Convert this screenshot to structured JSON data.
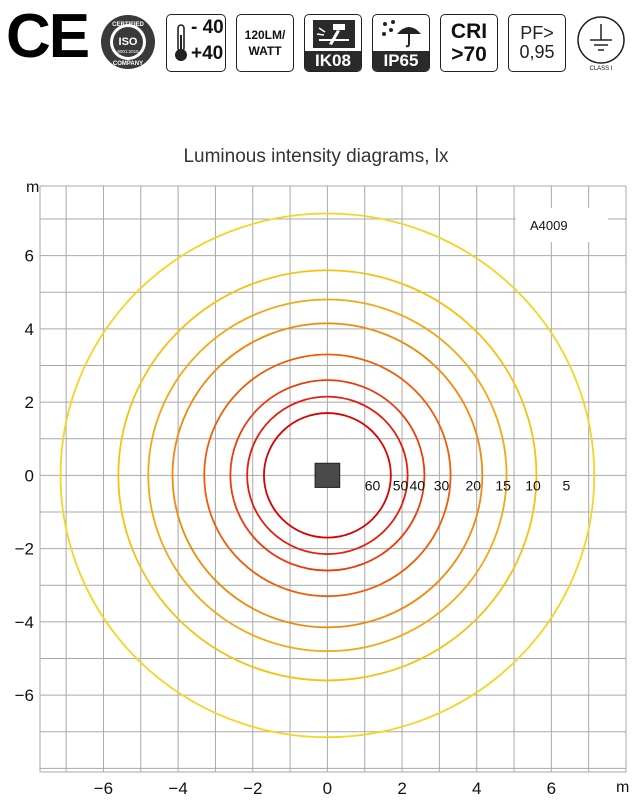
{
  "header_badges": {
    "ce_mark": "CE",
    "iso": {
      "top_text": "CERTIFIED",
      "center": "ISO",
      "standard": "9001:2015",
      "bottom_text": "COMPANY"
    },
    "temperature": {
      "min": "- 40",
      "max": "+40"
    },
    "efficacy": {
      "line1": "120LM/",
      "line2": "WATT"
    },
    "impact": {
      "label": "IK08",
      "icon": "hammer-impact-icon"
    },
    "ingress": {
      "label": "IP65",
      "icon": "rain-umbrella-icon"
    },
    "cri": {
      "line1": "CRI",
      "line2": ">70"
    },
    "power_factor": {
      "line1": "PF>",
      "line2": "0,95"
    },
    "protection_class": {
      "label": "CLASS I",
      "icon": "earth-ground-icon"
    }
  },
  "colors": {
    "grid": "#a9a9a9",
    "lamp": "#4a4a4a",
    "ring_palette": [
      "#d90000",
      "#e41e0c",
      "#ea3d0c",
      "#ee5c08",
      "#f08a0c",
      "#f3a815",
      "#f5c214",
      "#f2d624"
    ]
  },
  "chart_data": {
    "type": "isolux-contour",
    "title": "Luminous intensity diagrams, lx",
    "xlabel": "m",
    "ylabel": "m",
    "model_label": "A4009",
    "xlim": [
      -7.7,
      8
    ],
    "ylim": [
      -8.1,
      7.9
    ],
    "grid": true,
    "x_ticks": [
      -6,
      -4,
      -2,
      0,
      2,
      4,
      6
    ],
    "y_ticks": [
      6,
      4,
      2,
      0,
      -2,
      -4,
      -6
    ],
    "contours": [
      {
        "lux": 60,
        "radius": 1.7
      },
      {
        "lux": 50,
        "radius": 2.15
      },
      {
        "lux": 40,
        "radius": 2.6
      },
      {
        "lux": 30,
        "radius": 3.3
      },
      {
        "lux": 20,
        "radius": 4.15
      },
      {
        "lux": 15,
        "radius": 4.8
      },
      {
        "lux": 10,
        "radius": 5.6
      },
      {
        "lux": 5,
        "radius": 7.15
      }
    ],
    "contour_labels": [
      {
        "text": "60",
        "x": 1.0
      },
      {
        "text": "50",
        "x": 1.75
      },
      {
        "text": "40",
        "x": 2.2
      },
      {
        "text": "30",
        "x": 2.85
      },
      {
        "text": "20",
        "x": 3.7
      },
      {
        "text": "15",
        "x": 4.5
      },
      {
        "text": "10",
        "x": 5.3
      },
      {
        "text": "5",
        "x": 6.3
      }
    ]
  }
}
